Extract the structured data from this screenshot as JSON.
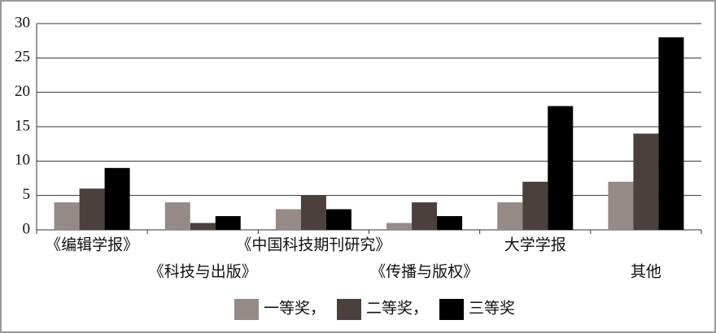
{
  "chart_data": {
    "type": "bar",
    "categories": [
      "《编辑学报》",
      "《科技与出版》",
      "《中国科技期刊研究》",
      "《传播与版权》",
      "大学学报",
      "其他"
    ],
    "series": [
      {
        "name": "一等奖，",
        "color": "#958a85",
        "values": [
          4,
          4,
          3,
          1,
          4,
          7
        ]
      },
      {
        "name": "二等奖，",
        "color": "#4b403c",
        "values": [
          6,
          1,
          5,
          4,
          7,
          14
        ]
      },
      {
        "name": "三等奖",
        "color": "#000000",
        "values": [
          9,
          2,
          3,
          2,
          18,
          28
        ]
      }
    ],
    "ylim": [
      0,
      30
    ],
    "yticks": [
      0,
      5,
      10,
      15,
      20,
      25,
      30
    ],
    "grid": true
  }
}
